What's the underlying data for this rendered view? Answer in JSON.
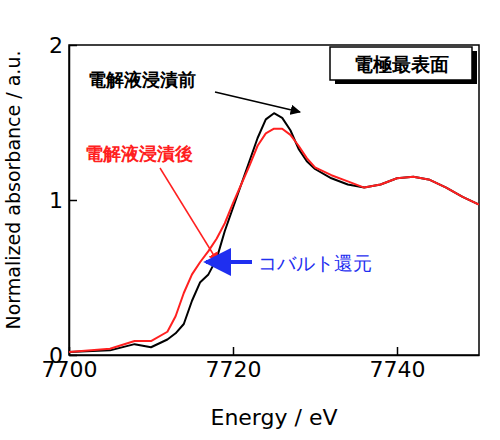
{
  "chart_data": {
    "type": "line",
    "x_label": "Energy / eV",
    "y_label": "Normalized absorbance / a.u.",
    "xlim": [
      7700,
      7750
    ],
    "ylim": [
      0,
      2
    ],
    "xticks": [
      7700,
      7720,
      7740
    ],
    "yticks": [
      0,
      1,
      2
    ],
    "x": [
      7700,
      7705,
      7708,
      7710,
      7712,
      7713,
      7714,
      7715,
      7716,
      7717,
      7718,
      7719,
      7720,
      7721,
      7722,
      7723,
      7724,
      7725,
      7726,
      7727,
      7728,
      7729,
      7730,
      7732,
      7734,
      7736,
      7738,
      7740,
      7742,
      7744,
      7746,
      7748,
      7750
    ],
    "series": [
      {
        "name": "電解液浸漬前",
        "color": "#000000",
        "values": [
          0.02,
          0.03,
          0.07,
          0.05,
          0.1,
          0.14,
          0.2,
          0.35,
          0.47,
          0.52,
          0.62,
          0.8,
          0.95,
          1.1,
          1.25,
          1.4,
          1.52,
          1.56,
          1.53,
          1.45,
          1.33,
          1.25,
          1.2,
          1.14,
          1.1,
          1.08,
          1.1,
          1.14,
          1.15,
          1.13,
          1.08,
          1.02,
          0.97
        ]
      },
      {
        "name": "電解液浸漬後",
        "color": "#ff2020",
        "values": [
          0.02,
          0.04,
          0.09,
          0.09,
          0.15,
          0.25,
          0.4,
          0.52,
          0.6,
          0.67,
          0.75,
          0.85,
          0.98,
          1.1,
          1.22,
          1.35,
          1.43,
          1.46,
          1.46,
          1.42,
          1.35,
          1.27,
          1.21,
          1.16,
          1.12,
          1.08,
          1.1,
          1.14,
          1.15,
          1.13,
          1.08,
          1.02,
          0.97
        ]
      }
    ],
    "annotations": [
      {
        "text": "電極最表面"
      },
      {
        "text": "コバルト還元"
      }
    ]
  }
}
